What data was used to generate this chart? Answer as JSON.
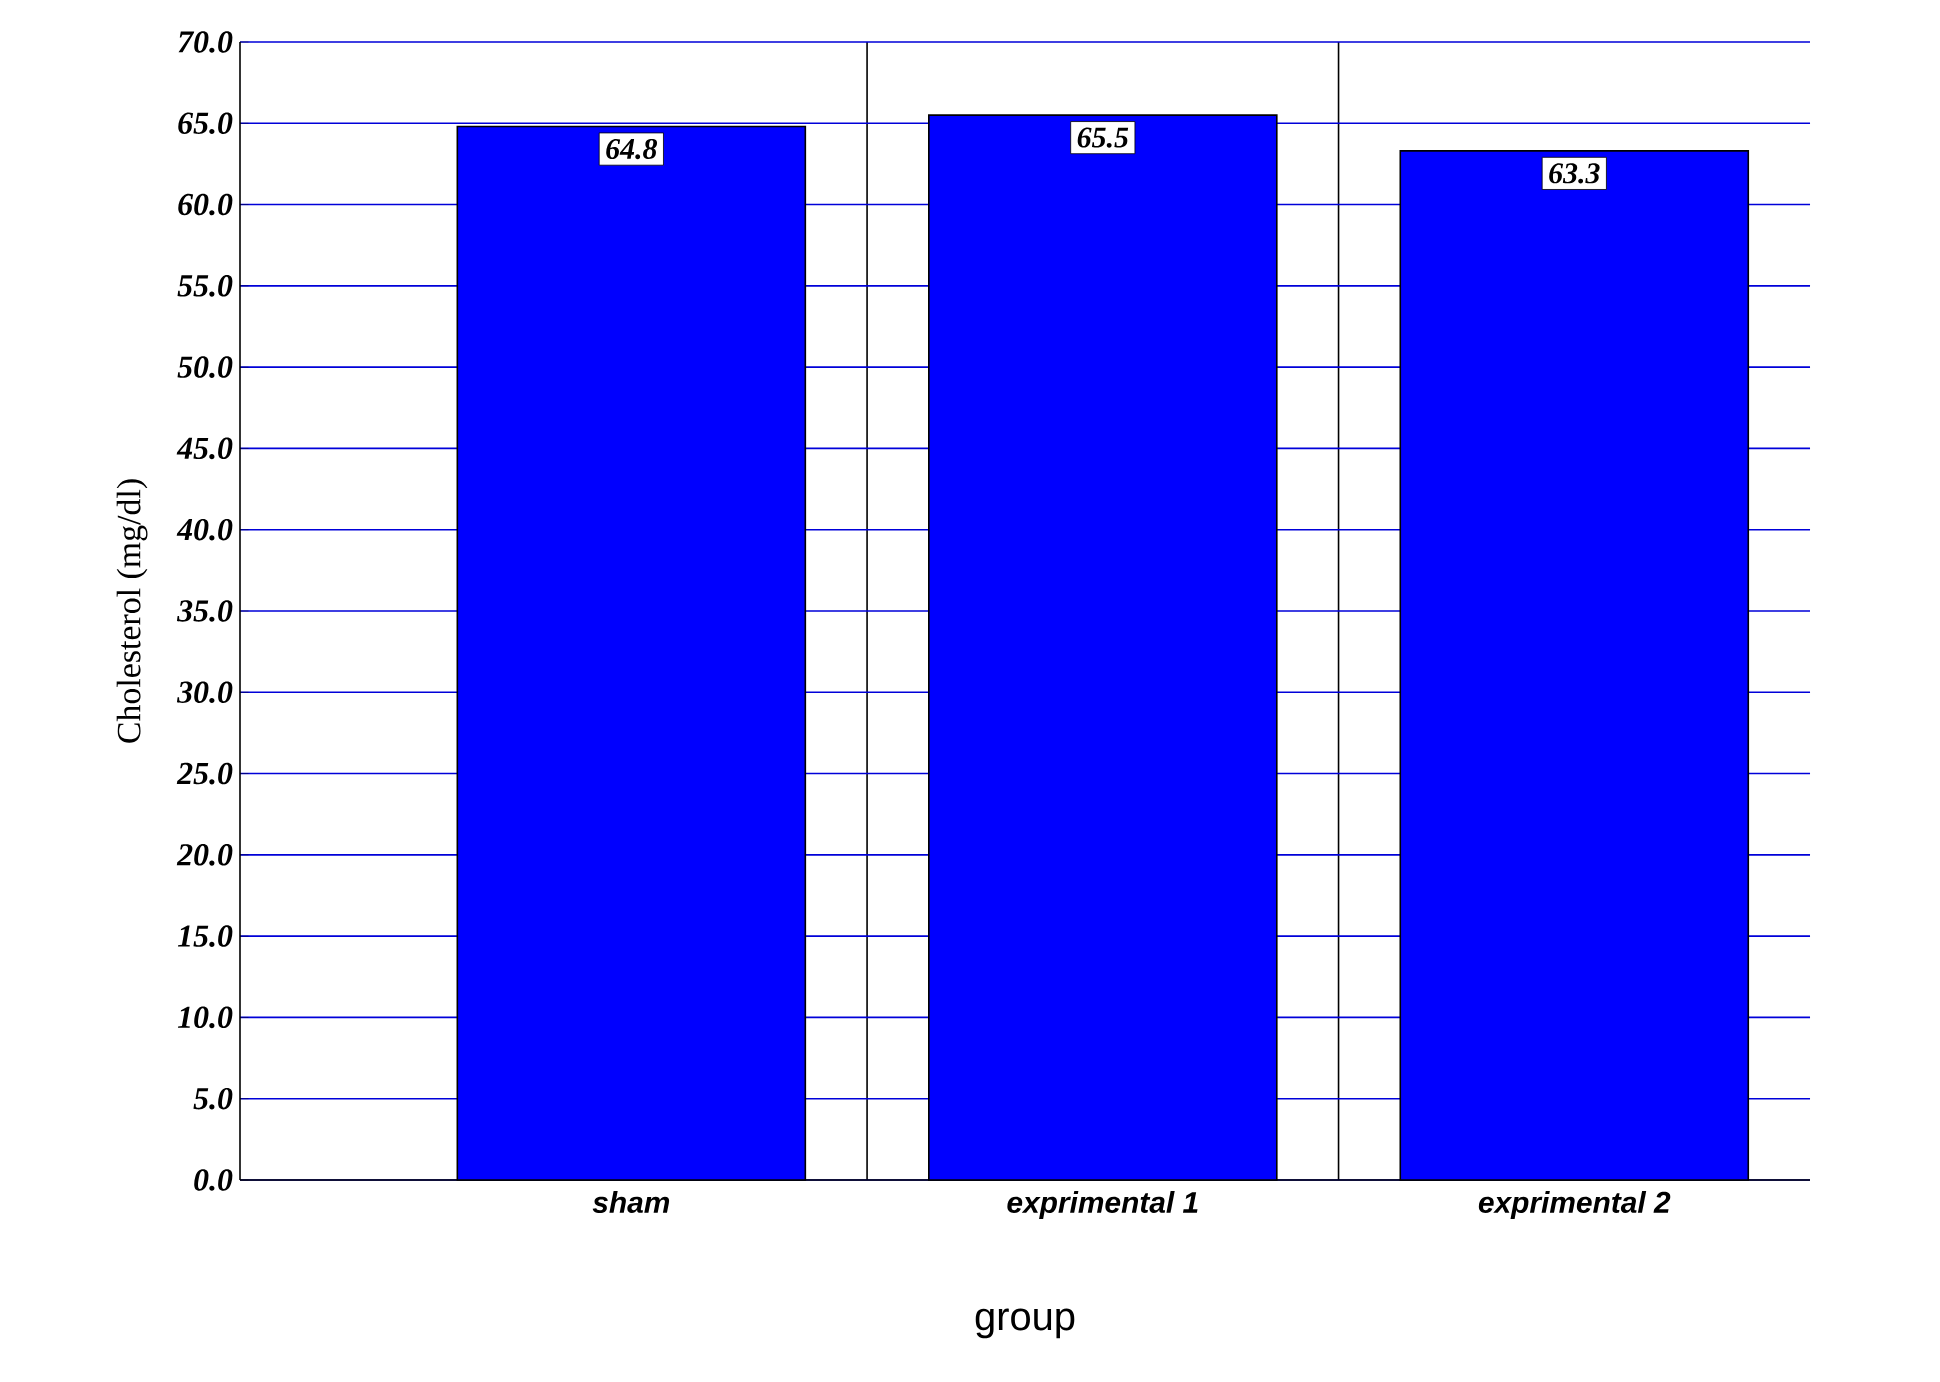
{
  "chart_data": {
    "type": "bar",
    "xlabel": "group",
    "ylabel": "Cholesterol (mg/dl)",
    "categories": [
      "sham",
      "exprimental 1",
      "exprimental 2"
    ],
    "values": [
      64.8,
      65.5,
      63.3
    ],
    "color": "#0000ff",
    "data_labels": true,
    "grid": true,
    "ylim": [
      0,
      70
    ],
    "yticks": [
      {
        "value": 0,
        "label": "0.0"
      },
      {
        "value": 5,
        "label": "5.0"
      },
      {
        "value": 10,
        "label": "10.0"
      },
      {
        "value": 15,
        "label": "15.0"
      },
      {
        "value": 20,
        "label": "20.0"
      },
      {
        "value": 25,
        "label": "25.0"
      },
      {
        "value": 30,
        "label": "30.0"
      },
      {
        "value": 35,
        "label": "35.0"
      },
      {
        "value": 40,
        "label": "40.0"
      },
      {
        "value": 45,
        "label": "45.0"
      },
      {
        "value": 50,
        "label": "50.0"
      },
      {
        "value": 55,
        "label": "55.0"
      },
      {
        "value": 60,
        "label": "60.0"
      },
      {
        "value": 65,
        "label": "65.0"
      },
      {
        "value": 70,
        "label": "70.0"
      }
    ]
  }
}
